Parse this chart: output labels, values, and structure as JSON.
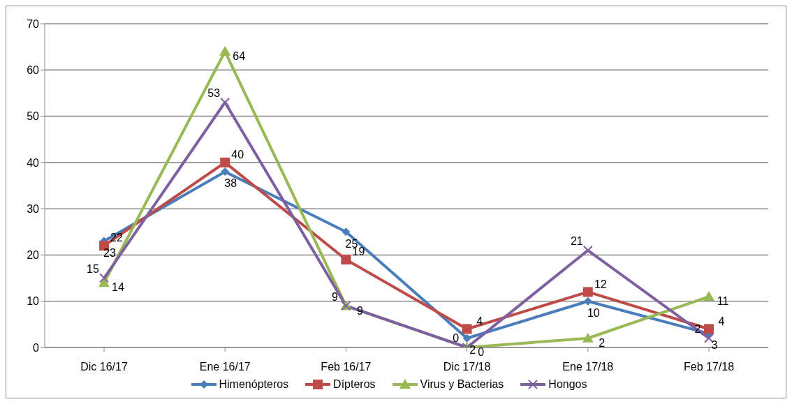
{
  "chart_data": {
    "type": "line",
    "categories": [
      "Dic 16/17",
      "Ene 16/17",
      "Feb 16/17",
      "Dic 17/18",
      "Ene 17/18",
      "Feb 17/18"
    ],
    "series": [
      {
        "name": "Himenópteros",
        "color": "#4a7ebb",
        "marker": "diamond",
        "values": [
          23,
          38,
          25,
          2,
          10,
          3
        ]
      },
      {
        "name": "Dípteros",
        "color": "#be4b48",
        "marker": "square",
        "values": [
          22,
          40,
          19,
          4,
          12,
          4
        ]
      },
      {
        "name": "Virus y Bacterias",
        "color": "#98b954",
        "marker": "triangle",
        "values": [
          14,
          64,
          9,
          0,
          2,
          11
        ]
      },
      {
        "name": "Hongos",
        "color": "#7d60a0",
        "marker": "cross",
        "values": [
          15,
          53,
          9,
          0,
          21,
          2
        ]
      }
    ],
    "ylim": [
      0,
      70
    ],
    "yticks": [
      0,
      10,
      20,
      30,
      40,
      50,
      60,
      70
    ],
    "grid": "y",
    "legend": "bottom",
    "data_labels": true
  }
}
